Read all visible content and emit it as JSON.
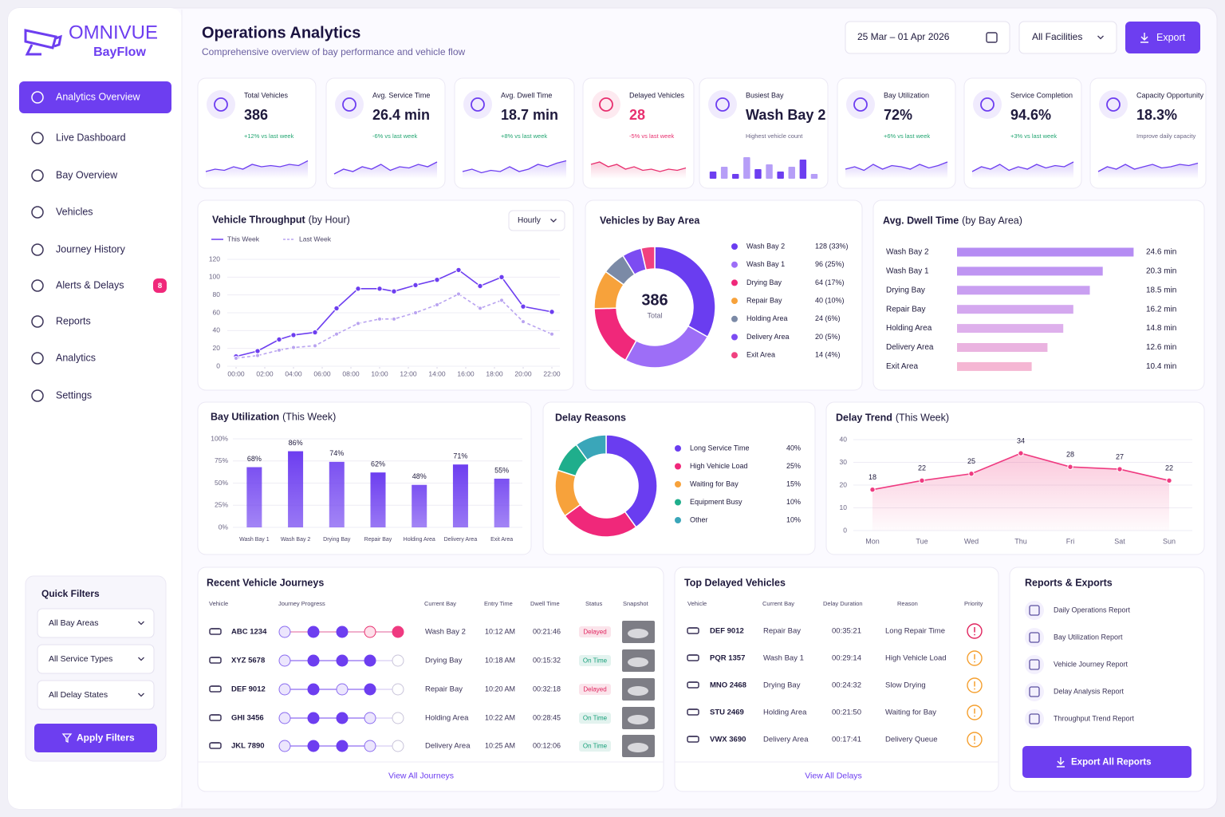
{
  "sidebar": {
    "brand": "OMNIVUE",
    "product": "BayFlow",
    "nav": [
      "Analytics Overview",
      "Live Dashboard",
      "Bay Overview",
      "Vehicles",
      "Journey History",
      "Alerts & Delays",
      "Reports",
      "Analytics",
      "Settings"
    ],
    "alerts_badge": 8
  },
  "quick_filters": {
    "title": "Quick Filters",
    "selects": [
      "All Bay Areas",
      "All Service Types",
      "All Delay States"
    ],
    "button": "Apply Filters"
  },
  "header": {
    "title": "Operations Analytics",
    "subtitle": "Comprehensive overview of bay performance and vehicle flow",
    "date_range": "25 Mar – 01 Apr 2026",
    "facility": "All Facilities",
    "export": "Export"
  },
  "kpis": {
    "spark_ylim": [
      0,
      10
    ],
    "items": [
      {
        "label": "Total Vehicles",
        "value": "386",
        "delta": "+12% vs last week",
        "delta_color": "#22a571",
        "color": "#6d3ef0",
        "spark": [
          3,
          4,
          3.5,
          5,
          4,
          6,
          5,
          5.5,
          5,
          6,
          5.5,
          7.5
        ]
      },
      {
        "label": "Avg. Service Time",
        "value": "26.4 min",
        "delta": "-6% vs last week",
        "delta_color": "#22a571",
        "color": "#6d3ef0",
        "spark": [
          2,
          4,
          3,
          5,
          4,
          6,
          3.5,
          5,
          4.5,
          6,
          5,
          7
        ]
      },
      {
        "label": "Avg. Dwell Time",
        "value": "18.7 min",
        "delta": "+8% vs last week",
        "delta_color": "#22a571",
        "color": "#6d3ef0",
        "spark": [
          3,
          4,
          2.5,
          3.5,
          3,
          5,
          3,
          4,
          6,
          5,
          6.5,
          7.5
        ]
      },
      {
        "label": "Delayed Vehicles",
        "value": "28",
        "delta": "-5% vs last week",
        "delta_color": "#e8306f",
        "color": "#e8306f",
        "value_color": "#e8306f",
        "spark": [
          6,
          7,
          5,
          6,
          4,
          5,
          3.5,
          4,
          3,
          4,
          3.5,
          4.5
        ]
      },
      {
        "label": "Busiest Bay",
        "value": "Wash Bay 2",
        "delta": "Highest vehicle count",
        "delta_color": "#6b6685",
        "color": "#6d3ef0",
        "spark_type": "bar",
        "spark": [
          3,
          5,
          2,
          9,
          4,
          6,
          3,
          5,
          8,
          2
        ]
      },
      {
        "label": "Bay Utilization",
        "value": "72%",
        "delta": "+6% vs last week",
        "delta_color": "#22a571",
        "color": "#6d3ef0",
        "spark": [
          4,
          5,
          3.5,
          6,
          4,
          5.5,
          5,
          4,
          6,
          4.5,
          5.5,
          7
        ]
      },
      {
        "label": "Service Completion",
        "value": "94.6%",
        "delta": "+3% vs last week",
        "delta_color": "#22a571",
        "color": "#6d3ef0",
        "spark": [
          3,
          5,
          4,
          6,
          3.5,
          5,
          4,
          6,
          4.5,
          5.5,
          5,
          7
        ]
      },
      {
        "label": "Capacity Opportunity",
        "value": "18.3%",
        "delta": "Improve daily capacity",
        "delta_color": "#6b6685",
        "color": "#6d3ef0",
        "spark": [
          3,
          5,
          4,
          6,
          4,
          5,
          6,
          4.5,
          5,
          6,
          5.5,
          6.5
        ]
      }
    ]
  },
  "chart_data": [
    {
      "type": "line",
      "title": "Vehicle Throughput",
      "subtitle": "(by Hour)",
      "period": "Hourly",
      "grid": true,
      "x": [
        0,
        1.5,
        3,
        4,
        5.5,
        7,
        8.5,
        10,
        11,
        12.5,
        14,
        15.5,
        17,
        18.5,
        20,
        22
      ],
      "xlim": [
        0,
        22
      ],
      "xticks": [
        {
          "value": 0,
          "label": "00:00"
        },
        {
          "value": 2,
          "label": "02:00"
        },
        {
          "value": 4,
          "label": "04:00"
        },
        {
          "value": 6,
          "label": "06:00"
        },
        {
          "value": 8,
          "label": "08:00"
        },
        {
          "value": 10,
          "label": "10:00"
        },
        {
          "value": 12,
          "label": "12:00"
        },
        {
          "value": 14,
          "label": "14:00"
        },
        {
          "value": 16,
          "label": "16:00"
        },
        {
          "value": 18,
          "label": "18:00"
        },
        {
          "value": 20,
          "label": "20:00"
        },
        {
          "value": 22,
          "label": "22:00"
        }
      ],
      "ylim": [
        0,
        120
      ],
      "yticks": [
        0,
        20,
        40,
        60,
        80,
        100,
        120
      ],
      "series": [
        {
          "name": "This Week",
          "color": "#6d3ef0",
          "values": [
            11,
            17,
            30,
            35,
            38,
            65,
            87,
            87,
            84,
            91,
            97,
            108,
            90,
            100,
            67,
            61
          ]
        },
        {
          "name": "Last Week",
          "color": "#b9a3f0",
          "dashed": true,
          "values": [
            9,
            12,
            18,
            21,
            23,
            36,
            48,
            53,
            53,
            60,
            69,
            81,
            65,
            74,
            50,
            36
          ]
        }
      ]
    },
    {
      "type": "donut",
      "title": "Vehicles by Bay Area",
      "total": 386,
      "total_label": "Total",
      "categories": [
        "Wash Bay 2",
        "Wash Bay 1",
        "Drying Bay",
        "Repair Bay",
        "Holding Area",
        "Delivery Area",
        "Exit Area"
      ],
      "values": [
        128,
        96,
        64,
        40,
        24,
        20,
        14
      ],
      "value_labels": [
        "128  (33%)",
        "96  (25%)",
        "64  (17%)",
        "40  (10%)",
        "24  (6%)",
        "20  (5%)",
        "14  (4%)"
      ],
      "colors": [
        "#6a3df0",
        "#9d6ef7",
        "#f0287a",
        "#f7a23b",
        "#7b8aa6",
        "#7c4cf2",
        "#f0417f"
      ]
    },
    {
      "type": "hbar",
      "title": "Avg. Dwell Time",
      "subtitle": "(by Bay Area)",
      "xlim": [
        0,
        25
      ],
      "categories": [
        "Wash Bay 2",
        "Wash Bay 1",
        "Drying Bay",
        "Repair Bay",
        "Holding Area",
        "Delivery Area",
        "Exit Area"
      ],
      "values": [
        24.6,
        20.3,
        18.5,
        16.2,
        14.8,
        12.6,
        10.4
      ],
      "value_labels": [
        "24.6 min",
        "20.3 min",
        "18.5 min",
        "16.2 min",
        "14.8 min",
        "12.6 min",
        "10.4 min"
      ],
      "colors": [
        "#b58cf3",
        "#bf95f2",
        "#c99ff1",
        "#d4a8ef",
        "#deb0ec",
        "#eab3e0",
        "#f5b6d3"
      ]
    },
    {
      "type": "bar",
      "title": "Bay Utilization",
      "subtitle": "(This Week)",
      "grid": true,
      "color": "#6d3ef0",
      "categories": [
        "Wash Bay 1",
        "Wash Bay 2",
        "Drying Bay",
        "Repair Bay",
        "Holding Area",
        "Delivery Area",
        "Exit Area"
      ],
      "values": [
        68,
        86,
        74,
        62,
        48,
        71,
        55
      ],
      "value_labels": [
        "68%",
        "86%",
        "74%",
        "62%",
        "48%",
        "71%",
        "55%"
      ],
      "ylim": [
        0,
        100
      ],
      "yticks": [
        {
          "value": 0,
          "label": "0%"
        },
        {
          "value": 25,
          "label": "25%"
        },
        {
          "value": 50,
          "label": "50%"
        },
        {
          "value": 75,
          "label": "75%"
        },
        {
          "value": 100,
          "label": "100%"
        }
      ]
    },
    {
      "type": "donut",
      "title": "Delay Reasons",
      "categories": [
        "Long Service Time",
        "High Vehicle Load",
        "Waiting for Bay",
        "Equipment Busy",
        "Other"
      ],
      "values": [
        40,
        25,
        15,
        10,
        10
      ],
      "value_labels": [
        "40%",
        "25%",
        "15%",
        "10%",
        "10%"
      ],
      "colors": [
        "#6a3df0",
        "#f0287a",
        "#f7a23b",
        "#1fae8c",
        "#3aa6b9"
      ]
    },
    {
      "type": "area",
      "title": "Delay Trend",
      "subtitle": "(This Week)",
      "grid": true,
      "data_labels": true,
      "color": "#ef3a80",
      "categories": [
        "Mon",
        "Tue",
        "Wed",
        "Thu",
        "Fri",
        "Sat",
        "Sun"
      ],
      "values": [
        18,
        22,
        25,
        34,
        28,
        27,
        22
      ],
      "ylim": [
        0,
        40
      ],
      "yticks": [
        0,
        10,
        20,
        30,
        40
      ]
    }
  ],
  "journeys": {
    "title": "Recent Vehicle Journeys",
    "columns": [
      "Vehicle",
      "Journey Progress",
      "Current Bay",
      "Entry Time",
      "Dwell Time",
      "Status",
      "Snapshot"
    ],
    "rows": [
      {
        "vehicle": "ABC 1234",
        "bay": "Wash Bay 2",
        "entry": "10:12 AM",
        "dwell": "00:21:46",
        "status": "Delayed",
        "status_color": "#e0245e"
      },
      {
        "vehicle": "XYZ 5678",
        "bay": "Drying Bay",
        "entry": "10:18 AM",
        "dwell": "00:15:32",
        "status": "On Time",
        "status_color": "#18a07a"
      },
      {
        "vehicle": "DEF 9012",
        "bay": "Repair Bay",
        "entry": "10:20 AM",
        "dwell": "00:32:18",
        "status": "Delayed",
        "status_color": "#e0245e"
      },
      {
        "vehicle": "GHI 3456",
        "bay": "Holding Area",
        "entry": "10:22 AM",
        "dwell": "00:28:45",
        "status": "On Time",
        "status_color": "#18a07a"
      },
      {
        "vehicle": "JKL 7890",
        "bay": "Delivery Area",
        "entry": "10:25 AM",
        "dwell": "00:12:06",
        "status": "On Time",
        "status_color": "#18a07a"
      }
    ],
    "footer": "View All Journeys"
  },
  "delays": {
    "title": "Top Delayed Vehicles",
    "columns": [
      "Vehicle",
      "Current Bay",
      "Delay Duration",
      "Reason",
      "Priority"
    ],
    "rows": [
      {
        "vehicle": "DEF 9012",
        "bay": "Repair Bay",
        "duration": "00:35:21",
        "reason": "Long Repair Time",
        "priority_color": "#e0245e"
      },
      {
        "vehicle": "PQR 1357",
        "bay": "Wash Bay 1",
        "duration": "00:29:14",
        "reason": "High Vehicle Load",
        "priority_color": "#f5a030"
      },
      {
        "vehicle": "MNO 2468",
        "bay": "Drying Bay",
        "duration": "00:24:32",
        "reason": "Slow Drying",
        "priority_color": "#f5a030"
      },
      {
        "vehicle": "STU 2469",
        "bay": "Holding Area",
        "duration": "00:21:50",
        "reason": "Waiting for Bay",
        "priority_color": "#f5a030"
      },
      {
        "vehicle": "VWX 3690",
        "bay": "Delivery Area",
        "duration": "00:17:41",
        "reason": "Delivery Queue",
        "priority_color": "#f5a030"
      }
    ],
    "footer": "View All Delays"
  },
  "reports": {
    "title": "Reports & Exports",
    "items": [
      "Daily Operations Report",
      "Bay Utilization Report",
      "Vehicle Journey Report",
      "Delay Analysis Report",
      "Throughput Trend Report"
    ],
    "button": "Export All Reports"
  }
}
